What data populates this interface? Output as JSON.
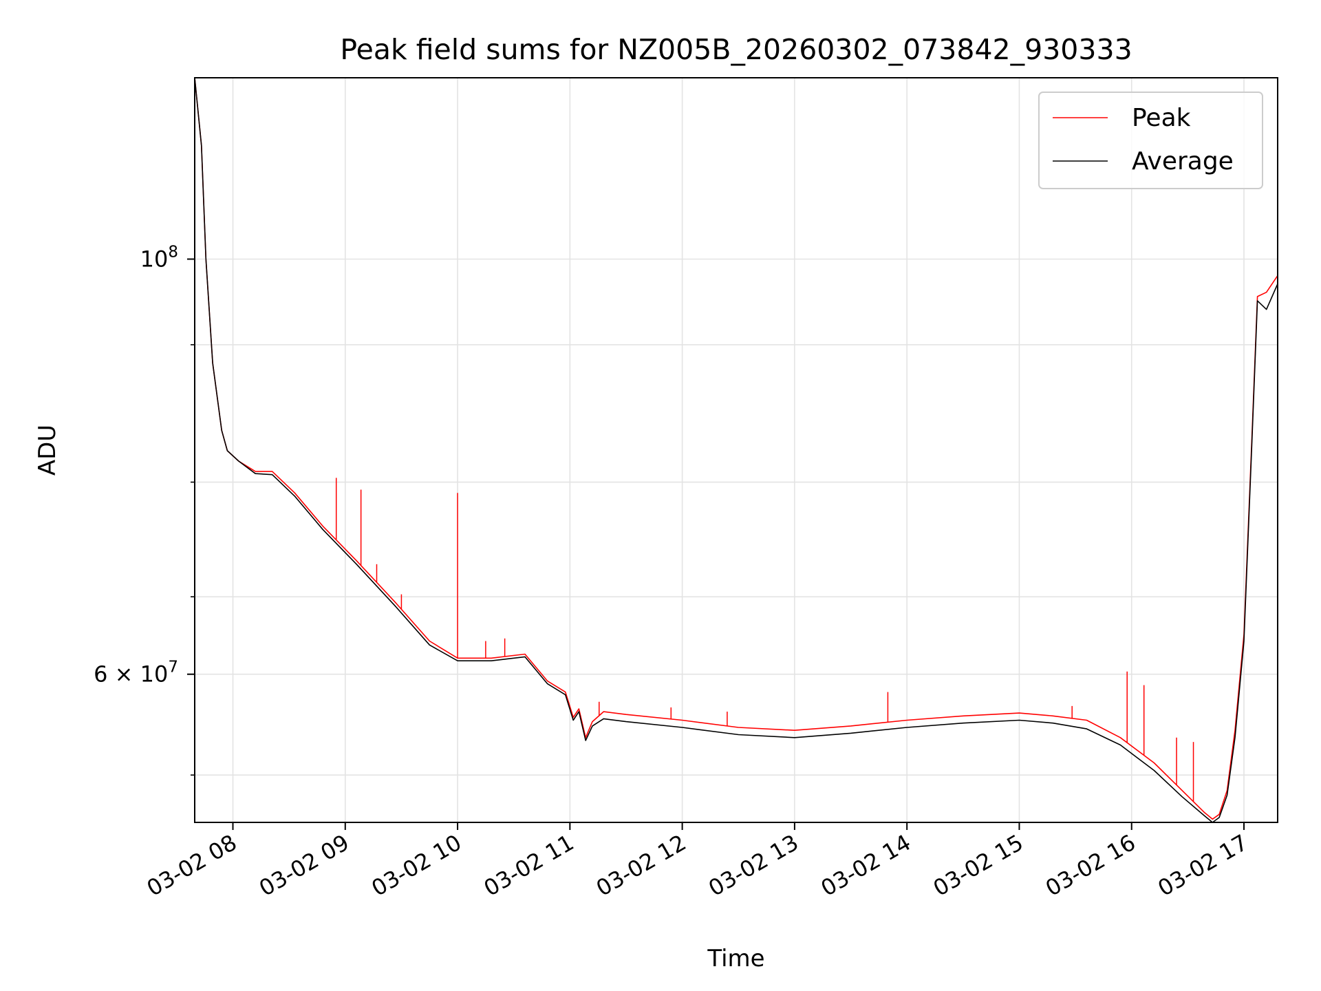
{
  "chart_data": {
    "type": "line",
    "title": "Peak field sums for NZ005B_20260302_073842_930333",
    "xlabel": "Time",
    "ylabel": "ADU",
    "yscale": "log",
    "grid": true,
    "legend_position": "top-right",
    "xlim": [
      7.66,
      17.3
    ],
    "ylim": [
      50000000,
      125000000
    ],
    "x_ticks": [
      {
        "value": 8,
        "label": "03-02 08"
      },
      {
        "value": 9,
        "label": "03-02 09"
      },
      {
        "value": 10,
        "label": "03-02 10"
      },
      {
        "value": 11,
        "label": "03-02 11"
      },
      {
        "value": 12,
        "label": "03-02 12"
      },
      {
        "value": 13,
        "label": "03-02 13"
      },
      {
        "value": 14,
        "label": "03-02 14"
      },
      {
        "value": 15,
        "label": "03-02 15"
      },
      {
        "value": 16,
        "label": "03-02 16"
      },
      {
        "value": 17,
        "label": "03-02 17"
      }
    ],
    "y_major_ticks": [
      {
        "value": 100000000,
        "base": "10",
        "exp": "8"
      },
      {
        "value": 60000000,
        "base": "6 × 10",
        "exp": "7"
      }
    ],
    "y_minor_ticks": [
      53000000,
      66000000,
      76000000,
      90000000
    ],
    "series": [
      {
        "name": "Peak",
        "color": "#ff0000",
        "x": [
          7.66,
          7.72,
          7.76,
          7.82,
          7.9,
          7.95,
          8.05,
          8.2,
          8.35,
          8.55,
          8.8,
          9.1,
          9.45,
          9.75,
          10.0,
          10.3,
          10.6,
          10.8,
          10.96,
          11.03,
          11.08,
          11.14,
          11.2,
          11.3,
          11.5,
          12.0,
          12.5,
          13.0,
          13.5,
          14.0,
          14.5,
          15.0,
          15.3,
          15.6,
          15.9,
          16.2,
          16.45,
          16.65,
          16.72,
          16.78,
          16.85,
          16.92,
          17.0,
          17.07,
          17.12,
          17.2,
          17.3
        ],
        "values": [
          125000000,
          115000000,
          100000000,
          88000000,
          81000000,
          79000000,
          78000000,
          77000000,
          77000000,
          75000000,
          72000000,
          69000000,
          65500000,
          62500000,
          61200000,
          61200000,
          61500000,
          59500000,
          58700000,
          56900000,
          57500000,
          55500000,
          56600000,
          57300000,
          57100000,
          56700000,
          56200000,
          56000000,
          56300000,
          56700000,
          57000000,
          57200000,
          57000000,
          56700000,
          55500000,
          53800000,
          52000000,
          50600000,
          50200000,
          50500000,
          52000000,
          56000000,
          63000000,
          80000000,
          95500000,
          96000000,
          98000000
        ]
      },
      {
        "name": "Average",
        "color": "#000000",
        "x": [
          7.66,
          7.72,
          7.76,
          7.82,
          7.9,
          7.95,
          8.05,
          8.2,
          8.35,
          8.55,
          8.8,
          9.1,
          9.45,
          9.75,
          10.0,
          10.3,
          10.6,
          10.8,
          10.96,
          11.03,
          11.08,
          11.14,
          11.2,
          11.3,
          11.5,
          12.0,
          12.5,
          13.0,
          13.5,
          14.0,
          14.5,
          15.0,
          15.3,
          15.6,
          15.9,
          16.2,
          16.45,
          16.65,
          16.72,
          16.78,
          16.85,
          16.92,
          17.0,
          17.07,
          17.12,
          17.2,
          17.3
        ],
        "values": [
          125000000,
          115000000,
          100000000,
          88000000,
          81000000,
          79000000,
          78000000,
          76800000,
          76700000,
          74700000,
          71700000,
          68700000,
          65200000,
          62200000,
          61000000,
          61000000,
          61300000,
          59300000,
          58500000,
          56700000,
          57300000,
          55300000,
          56300000,
          56800000,
          56600000,
          56200000,
          55700000,
          55500000,
          55800000,
          56200000,
          56500000,
          56700000,
          56500000,
          56100000,
          55000000,
          53300000,
          51600000,
          50400000,
          50000000,
          50300000,
          51700000,
          55500000,
          62500000,
          79500000,
          95000000,
          94000000,
          97000000
        ]
      }
    ],
    "spikes": [
      {
        "x": 8.92,
        "value": 76400000
      },
      {
        "x": 9.14,
        "value": 75300000
      },
      {
        "x": 9.28,
        "value": 68700000
      },
      {
        "x": 9.5,
        "value": 66200000
      },
      {
        "x": 10.0,
        "value": 75000000
      },
      {
        "x": 10.25,
        "value": 62500000
      },
      {
        "x": 10.42,
        "value": 62700000
      },
      {
        "x": 11.26,
        "value": 58000000
      },
      {
        "x": 11.9,
        "value": 57600000
      },
      {
        "x": 12.4,
        "value": 57300000
      },
      {
        "x": 13.83,
        "value": 58700000
      },
      {
        "x": 15.47,
        "value": 57700000
      },
      {
        "x": 15.96,
        "value": 60200000
      },
      {
        "x": 16.11,
        "value": 59200000
      },
      {
        "x": 16.4,
        "value": 55500000
      },
      {
        "x": 16.55,
        "value": 55200000
      }
    ]
  }
}
